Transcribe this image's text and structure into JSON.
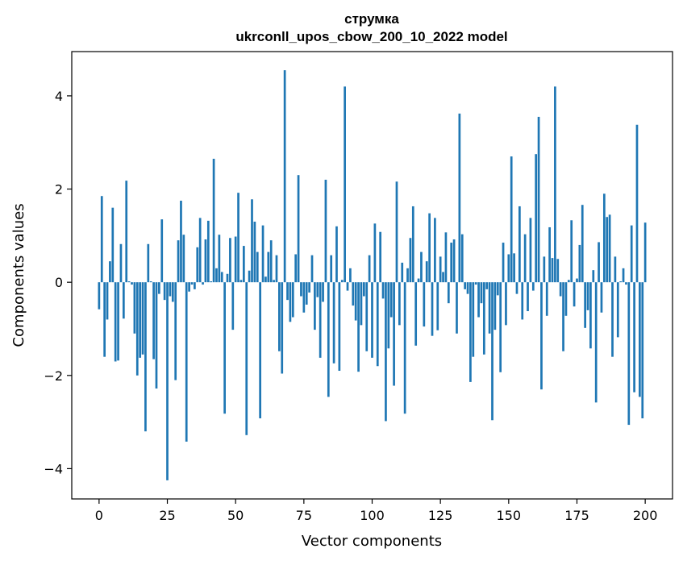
{
  "chart_data": {
    "type": "bar",
    "title": "струмка",
    "subtitle": "ukrconll_upos_cbow_200_10_2022 model",
    "xlabel": "Vector components",
    "ylabel": "Components values",
    "xlim": [
      -10,
      210
    ],
    "ylim": [
      -4.65,
      4.95
    ],
    "xticks": [
      0,
      25,
      50,
      75,
      100,
      125,
      150,
      175,
      200
    ],
    "yticks": [
      -4,
      -2,
      0,
      2,
      4
    ],
    "ytick_labels": [
      "−4",
      "−2",
      "0",
      "2",
      "4"
    ],
    "bar_color": "#1f77b4",
    "grid": false,
    "values": [
      -0.58,
      1.85,
      -1.6,
      -0.8,
      0.45,
      1.6,
      -1.7,
      -1.68,
      0.82,
      -0.78,
      2.18,
      0.02,
      -0.05,
      -1.1,
      -2.0,
      -1.62,
      -1.55,
      -3.2,
      0.82,
      0.02,
      -1.65,
      -2.28,
      -0.25,
      1.35,
      -0.38,
      -4.25,
      -0.3,
      -0.42,
      -2.1,
      0.9,
      1.75,
      1.02,
      -3.42,
      -0.2,
      -0.05,
      -0.15,
      0.75,
      1.38,
      -0.05,
      0.92,
      1.32,
      0.02,
      2.65,
      0.3,
      1.02,
      0.22,
      -2.82,
      0.18,
      0.95,
      -1.02,
      0.98,
      1.92,
      0.05,
      0.78,
      -3.28,
      0.25,
      1.78,
      1.3,
      0.65,
      -2.92,
      1.22,
      0.12,
      0.65,
      0.9,
      0.05,
      0.58,
      -1.48,
      -1.96,
      4.55,
      -0.38,
      -0.85,
      -0.75,
      0.6,
      2.3,
      -0.3,
      -0.65,
      -0.48,
      -0.22,
      0.58,
      -1.02,
      -0.32,
      -1.62,
      -0.42,
      2.2,
      -2.46,
      0.58,
      -1.74,
      1.2,
      -1.9,
      0.05,
      4.2,
      -0.18,
      0.3,
      -0.5,
      -0.82,
      -1.92,
      -0.92,
      -0.3,
      -1.48,
      0.58,
      -1.62,
      1.26,
      -1.8,
      1.08,
      -0.35,
      -2.98,
      -1.42,
      -0.75,
      -2.22,
      2.16,
      -0.92,
      0.42,
      -2.82,
      0.3,
      0.95,
      1.63,
      -1.36,
      0.08,
      0.65,
      -0.95,
      0.45,
      1.48,
      -1.15,
      1.38,
      -1.03,
      0.55,
      0.22,
      1.07,
      -0.45,
      0.85,
      0.92,
      -1.1,
      3.62,
      1.03,
      -0.15,
      -0.25,
      -2.14,
      -1.6,
      -0.05,
      -0.75,
      -0.45,
      -1.55,
      -0.15,
      -1.1,
      -2.96,
      -1.02,
      -0.28,
      -1.93,
      0.85,
      -0.92,
      0.6,
      2.7,
      0.62,
      -0.25,
      1.63,
      -0.8,
      1.03,
      -0.62,
      1.38,
      -0.18,
      2.75,
      3.55,
      -2.3,
      0.55,
      -0.72,
      1.18,
      0.52,
      4.2,
      0.5,
      -0.3,
      -1.48,
      -0.72,
      0.05,
      1.33,
      -0.52,
      0.08,
      0.8,
      1.66,
      -0.98,
      -0.6,
      -1.42,
      0.26,
      -2.58,
      0.86,
      -0.65,
      1.9,
      1.4,
      1.45,
      -1.6,
      0.55,
      -1.18,
      0.02,
      0.3,
      -0.05,
      -3.06,
      1.22,
      -2.36,
      3.38,
      -2.46,
      -2.92,
      1.28
    ]
  }
}
